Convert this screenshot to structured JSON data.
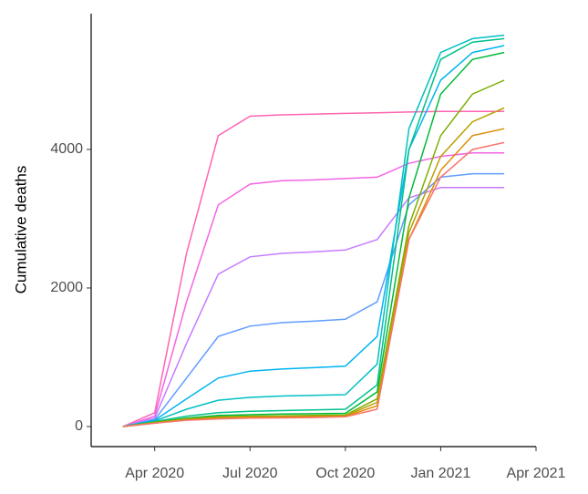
{
  "chart_data": {
    "type": "line",
    "y_label": "Cumulative deaths",
    "x": [
      "2020-03",
      "2020-04",
      "2020-05",
      "2020-06",
      "2020-07",
      "2020-08",
      "2020-09",
      "2020-10",
      "2020-11",
      "2020-12",
      "2021-01",
      "2021-02",
      "2021-03"
    ],
    "xlim": [
      "2020-02",
      "2021-04"
    ],
    "xticks": [
      {
        "value": "2020-04",
        "label": "Apr 2020"
      },
      {
        "value": "2020-07",
        "label": "Jul 2020"
      },
      {
        "value": "2020-10",
        "label": "Oct 2020"
      },
      {
        "value": "2021-01",
        "label": "Jan 2021"
      },
      {
        "value": "2021-04",
        "label": "Apr 2021"
      }
    ],
    "ylim": [
      -290,
      5960
    ],
    "yticks": [
      0,
      2000,
      4000
    ],
    "grid": false,
    "series": [
      {
        "color": "#FF64B0",
        "values": [
          0,
          200,
          2500,
          4200,
          4480,
          4500,
          4510,
          4520,
          4530,
          4540,
          4550,
          4550,
          4550
        ]
      },
      {
        "color": "#F564E3",
        "values": [
          0,
          150,
          1800,
          3200,
          3500,
          3550,
          3560,
          3580,
          3600,
          3800,
          3900,
          3950,
          3950
        ]
      },
      {
        "color": "#C77CFF",
        "values": [
          0,
          120,
          1200,
          2200,
          2450,
          2500,
          2520,
          2550,
          2700,
          3300,
          3450,
          3450,
          3450
        ]
      },
      {
        "color": "#619CFF",
        "values": [
          0,
          100,
          700,
          1300,
          1450,
          1500,
          1520,
          1550,
          1800,
          3200,
          3600,
          3650,
          3650
        ]
      },
      {
        "color": "#00B4F0",
        "values": [
          0,
          90,
          400,
          700,
          800,
          830,
          850,
          870,
          1300,
          4000,
          5000,
          5400,
          5500
        ]
      },
      {
        "color": "#00BFC4",
        "values": [
          0,
          80,
          250,
          380,
          420,
          440,
          450,
          460,
          900,
          4300,
          5400,
          5600,
          5650
        ]
      },
      {
        "color": "#00C08B",
        "values": [
          0,
          70,
          150,
          200,
          220,
          230,
          240,
          250,
          600,
          4000,
          5300,
          5550,
          5600
        ]
      },
      {
        "color": "#00BA38",
        "values": [
          0,
          60,
          120,
          160,
          170,
          180,
          185,
          190,
          500,
          3300,
          4800,
          5300,
          5400
        ]
      },
      {
        "color": "#7CAE00",
        "values": [
          0,
          60,
          110,
          140,
          150,
          155,
          160,
          165,
          400,
          2900,
          4200,
          4800,
          5000
        ]
      },
      {
        "color": "#B79F00",
        "values": [
          0,
          50,
          100,
          130,
          140,
          145,
          150,
          155,
          350,
          2800,
          3900,
          4400,
          4600
        ]
      },
      {
        "color": "#DE8C00",
        "values": [
          0,
          50,
          100,
          120,
          130,
          135,
          140,
          145,
          300,
          2700,
          3700,
          4200,
          4300
        ]
      },
      {
        "color": "#F8766D",
        "values": [
          0,
          50,
          90,
          110,
          120,
          125,
          130,
          140,
          250,
          2700,
          3600,
          4000,
          4100
        ]
      }
    ]
  }
}
